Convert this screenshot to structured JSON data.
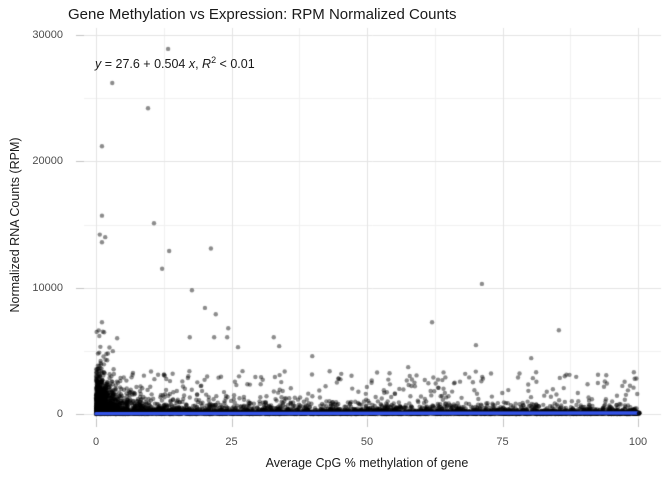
{
  "chart": {
    "title": "Gene Methylation vs Expression: RPM Normalized Counts",
    "equation": {
      "y_var": "y",
      "mid": " = 27.6 + 0.504 ",
      "x_var": "x",
      "comma": ", ",
      "r_var": "R",
      "r_exp": "2",
      "tail": " < 0.01"
    },
    "x_axis": {
      "label": "Average CpG % methylation of gene"
    },
    "y_axis": {
      "label": "Normalized RNA Counts (RPM)"
    }
  },
  "chart_data": {
    "type": "scatter",
    "title": "Gene Methylation vs Expression: RPM Normalized Counts",
    "xlabel": "Average CpG % methylation of gene",
    "ylabel": "Normalized RNA Counts (RPM)",
    "xlim": [
      0,
      100
    ],
    "ylim": [
      0,
      30000
    ],
    "x_ticks": [
      0,
      25,
      50,
      75,
      100
    ],
    "x_minor_ticks": [
      12.5,
      37.5,
      62.5,
      87.5
    ],
    "y_ticks": [
      0,
      10000,
      20000,
      30000
    ],
    "y_minor_ticks": [
      5000,
      15000,
      25000
    ],
    "grid": true,
    "annotation_text": "y = 27.6 + 0.504 x, R2 < 0.01",
    "regression": {
      "intercept": 27.6,
      "slope": 0.504,
      "r_squared": "< 0.01",
      "line_color": "#3353E8",
      "line_width": 3.4
    },
    "point_style": {
      "color": "#000000",
      "opacity": 0.45,
      "radius": 2.2
    },
    "outlier_points": [
      [
        13.3,
        28900
      ],
      [
        3.0,
        26200
      ],
      [
        9.6,
        24200
      ],
      [
        1.1,
        21200
      ],
      [
        1.1,
        15700
      ],
      [
        10.7,
        15100
      ],
      [
        0.7,
        14200
      ],
      [
        1.7,
        14000
      ],
      [
        1.1,
        13600
      ],
      [
        21.2,
        13100
      ],
      [
        13.5,
        12900
      ],
      [
        12.2,
        11500
      ],
      [
        71.2,
        10300
      ],
      [
        17.7,
        9800
      ],
      [
        20.1,
        8400
      ],
      [
        22.1,
        7900
      ],
      [
        1.1,
        7260
      ],
      [
        62.0,
        7260
      ],
      [
        24.4,
        6790
      ],
      [
        85.4,
        6630
      ],
      [
        1.5,
        6470
      ],
      [
        17.3,
        6080
      ],
      [
        21.8,
        6080
      ],
      [
        24.2,
        6080
      ],
      [
        32.8,
        6080
      ],
      [
        3.9,
        6000
      ],
      [
        70.1,
        5450
      ],
      [
        33.8,
        5370
      ],
      [
        26.2,
        5290
      ],
      [
        39.9,
        4580
      ],
      [
        80.3,
        4420
      ],
      [
        57.6,
        3710
      ],
      [
        81.2,
        3310
      ],
      [
        92.6,
        2450
      ],
      [
        86.3,
        2050
      ],
      [
        88.9,
        1660
      ],
      [
        100.2,
        60
      ]
    ],
    "dense_cloud": {
      "seed": 42,
      "groups": [
        {
          "name": "zero-row",
          "n": 1400,
          "x": {
            "type": "uniform",
            "min": 0,
            "max": 100.3
          },
          "y": {
            "type": "exp",
            "mean": 70,
            "max": 350
          }
        },
        {
          "name": "base-band",
          "n": 2400,
          "x": {
            "type": "uniform",
            "min": 0,
            "max": 100
          },
          "y": {
            "type": "exp",
            "mean": 330,
            "max": 2100,
            "taper": 0.45
          }
        },
        {
          "name": "left-column",
          "n": 850,
          "x": {
            "type": "exp",
            "mean": 1.3,
            "max": 9
          },
          "y": {
            "type": "exp",
            "mean": 1050,
            "max": 6900
          }
        },
        {
          "name": "left-mid",
          "n": 380,
          "x": {
            "type": "exp",
            "mean": 7,
            "max": 34
          },
          "y": {
            "type": "exp",
            "mean": 650,
            "max": 4600
          }
        },
        {
          "name": "wide-sparse",
          "n": 240,
          "x": {
            "type": "uniform",
            "min": 0,
            "max": 100
          },
          "y": {
            "type": "uniform",
            "min": 350,
            "max": 3400
          }
        }
      ]
    },
    "colors": {
      "background": "#ffffff",
      "grid_major": "#e4e4e4",
      "grid_minor": "#f1f1f1",
      "tick_mark": "#c4c4c4",
      "tick_label": "#4d4d4d",
      "text": "#1a1a1a",
      "smooth_line": "#3353E8",
      "points": "#000000"
    }
  }
}
